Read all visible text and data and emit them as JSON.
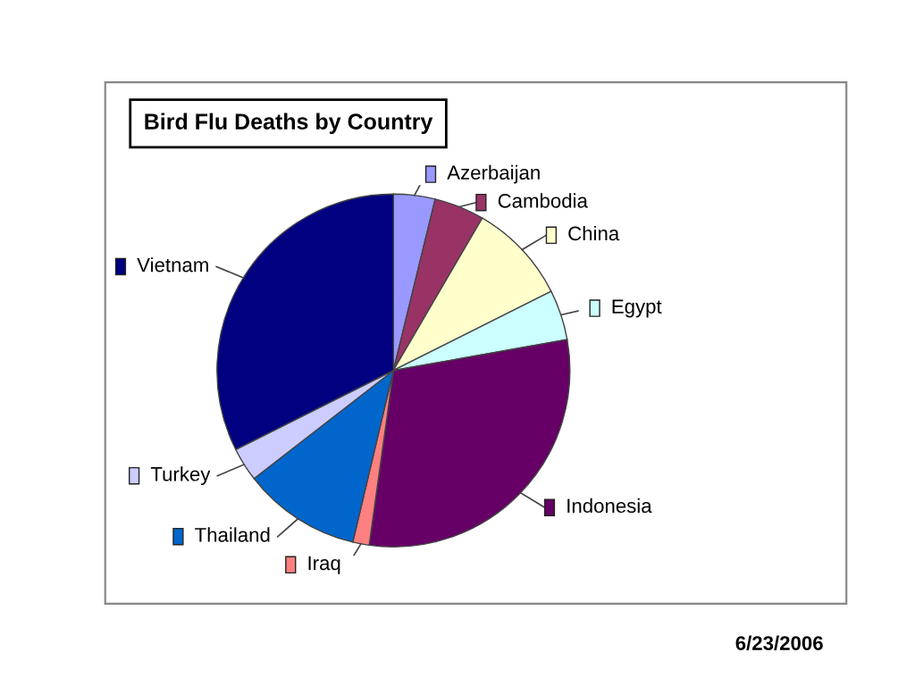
{
  "chart_data": {
    "type": "pie",
    "title": "Bird Flu Deaths by Country",
    "categories": [
      "Azerbaijan",
      "Cambodia",
      "China",
      "Egypt",
      "Indonesia",
      "Iraq",
      "Thailand",
      "Turkey",
      "Vietnam"
    ],
    "values": [
      3.8,
      4.6,
      9.2,
      4.6,
      30.0,
      1.5,
      10.8,
      3.1,
      32.4
    ],
    "colors": [
      "#9999ff",
      "#993366",
      "#ffffcc",
      "#ccffff",
      "#660066",
      "#ff8080",
      "#0066cc",
      "#ccccff",
      "#000080"
    ],
    "legend": "right",
    "annotations": [
      "6/23/2006"
    ]
  }
}
